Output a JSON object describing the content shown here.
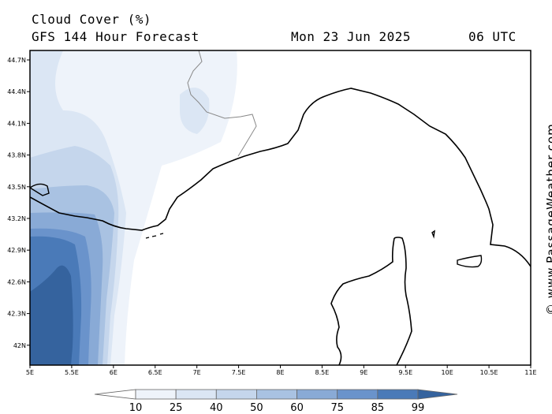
{
  "header": {
    "title": "Cloud Cover (%)",
    "subtitle": "GFS 144 Hour Forecast",
    "date": "Mon 23 Jun 2025",
    "time": "06 UTC"
  },
  "credit": "© www.PassageWeather.com",
  "colors": {
    "frame": "#000000",
    "coast": "#000000",
    "border": "#888888",
    "levels": [
      "#ffffff",
      "#eef3fa",
      "#dbe6f4",
      "#c5d6ec",
      "#a9c2e2",
      "#89aad6",
      "#6a93cb",
      "#4a7ab8",
      "#35639e"
    ]
  },
  "map": {
    "lon_range": [
      5,
      11
    ],
    "lat_range": [
      41.8,
      44.8
    ],
    "lon_ticks": [
      "5E",
      "5.5E",
      "6E",
      "6.5E",
      "7E",
      "7.5E",
      "8E",
      "8.5E",
      "9E",
      "9.5E",
      "10E",
      "10.5E",
      "11E"
    ],
    "lat_ticks": [
      "44.7N",
      "44.4N",
      "44.1N",
      "43.8N",
      "43.5N",
      "43.2N",
      "42.9N",
      "42.6N",
      "42.3N",
      "42N"
    ]
  },
  "colorbar": {
    "labels": [
      "10",
      "25",
      "40",
      "50",
      "60",
      "75",
      "85",
      "99"
    ]
  }
}
